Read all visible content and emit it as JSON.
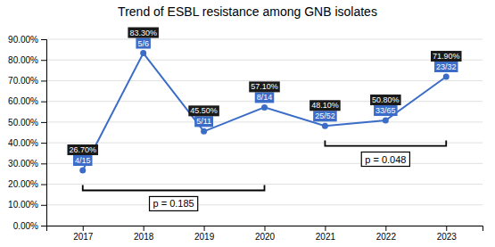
{
  "chart_data": {
    "type": "line",
    "title": "Trend of ESBL resistance among GNB isolates",
    "x": [
      2017,
      2018,
      2019,
      2020,
      2021,
      2022,
      2023
    ],
    "values": [
      26.7,
      83.3,
      45.5,
      57.1,
      48.1,
      50.8,
      71.9
    ],
    "value_labels": [
      "26.70%",
      "83.30%",
      "45.50%",
      "57.10%",
      "48.10%",
      "50.80%",
      "71.90%"
    ],
    "count_labels": [
      "4/15",
      "5/6",
      "5/11",
      "8/14",
      "25/52",
      "33/65",
      "23/32"
    ],
    "color": "#3b6dc8",
    "marker": "circle",
    "data_labels": true,
    "grid": true,
    "xlim": [
      2016.4,
      2023.6
    ],
    "xticks": [
      2017,
      2018,
      2019,
      2020,
      2021,
      2022,
      2023
    ],
    "ylim": [
      0,
      90
    ],
    "yticks": [
      {
        "value": 0,
        "label": "0.00%"
      },
      {
        "value": 10,
        "label": "10.00%"
      },
      {
        "value": 20,
        "label": "20.00%"
      },
      {
        "value": 30,
        "label": "30.00%"
      },
      {
        "value": 40,
        "label": "40.00%"
      },
      {
        "value": 50,
        "label": "50.00%"
      },
      {
        "value": 60,
        "label": "60.00%"
      },
      {
        "value": 70,
        "label": "70.00%"
      },
      {
        "value": 80,
        "label": "80.00%"
      },
      {
        "value": 90,
        "label": "90.00%"
      }
    ],
    "brackets": [
      {
        "x": [
          2017,
          2020
        ],
        "y": 17.0,
        "text": "p = 0.185"
      },
      {
        "x": [
          2021,
          2023
        ],
        "y": 38.5,
        "text": "p = 0.048"
      }
    ]
  }
}
